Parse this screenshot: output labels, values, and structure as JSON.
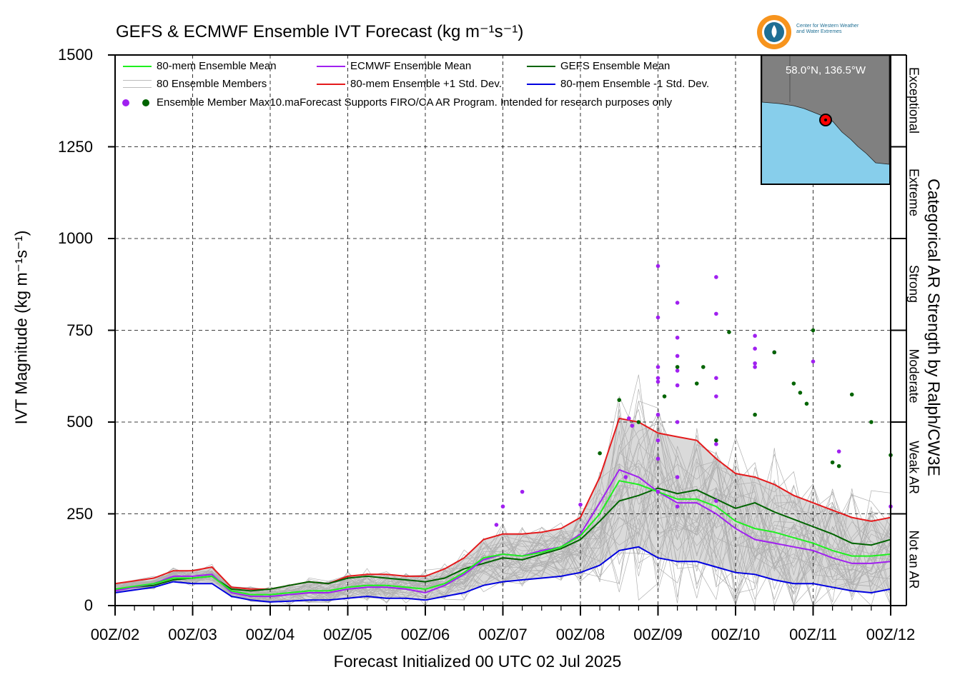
{
  "title": "GEFS & ECMWF Ensemble IVT Forecast (kg m⁻¹s⁻¹)",
  "logo": {
    "text_line1": "Center for Western Weather",
    "text_line2": "and Water Extremes"
  },
  "inset_map": {
    "location": "58.0°N, 136.5°W",
    "land_color": "#808080",
    "ocean_color": "#87ceeb",
    "marker_color": "#ff0000"
  },
  "legend": {
    "items": [
      {
        "label": "80-mem Ensemble Mean",
        "color": "#1ef01e"
      },
      {
        "label": "ECMWF Ensemble Mean",
        "color": "#a020f0"
      },
      {
        "label": "GEFS Ensemble Mean",
        "color": "#006400"
      },
      {
        "label": "80 Ensemble Members",
        "color": "#b0b0b0"
      },
      {
        "label": "80-mem Ensemble +1 Std. Dev.",
        "color": "#e41a1c"
      },
      {
        "label": "80-mem Ensemble -1 Std. Dev.",
        "color": "#0000e0"
      }
    ],
    "dots_label": "Ensemble Member Max10.maForecast Supports FIRO/CA AR Program. Intended for research purposes only"
  },
  "categories": [
    "Exceptional",
    "Extreme",
    "Strong",
    "Moderate",
    "Weak AR",
    "Not an AR"
  ],
  "chart_data": {
    "type": "line",
    "title": "GEFS & ECMWF Ensemble IVT Forecast (kg m⁻¹s⁻¹)",
    "xlabel": "Forecast Initialized 00 UTC 02 Jul 2025",
    "ylabel": "IVT Magnitude (kg m⁻¹s⁻¹)",
    "right_label": "Categorical AR Strength by Ralph/CW3E",
    "ylim": [
      0,
      1500
    ],
    "yticks": [
      0,
      250,
      500,
      750,
      1000,
      1250,
      1500
    ],
    "xlim": [
      0,
      240
    ],
    "xtick_labels": [
      "00Z/02",
      "00Z/03",
      "00Z/04",
      "00Z/05",
      "00Z/06",
      "00Z/07",
      "00Z/08",
      "00Z/09",
      "00Z/10",
      "00Z/11",
      "00Z/12"
    ],
    "x_unit": "forecast hour",
    "grid": true,
    "category_thresholds": [
      250,
      500,
      750,
      1000,
      1250
    ],
    "series": [
      {
        "name": "80-mem Ensemble Mean",
        "color": "#1ef01e",
        "x": [
          0,
          12,
          18,
          24,
          30,
          36,
          42,
          48,
          54,
          60,
          66,
          72,
          78,
          84,
          90,
          96,
          102,
          108,
          114,
          120,
          126,
          132,
          138,
          144,
          150,
          156,
          162,
          168,
          174,
          180,
          186,
          192,
          198,
          204,
          210,
          216,
          222,
          228,
          234,
          240
        ],
        "y": [
          45,
          60,
          75,
          75,
          80,
          40,
          30,
          30,
          35,
          40,
          40,
          50,
          55,
          55,
          50,
          45,
          60,
          90,
          130,
          140,
          135,
          145,
          160,
          190,
          250,
          340,
          330,
          310,
          290,
          290,
          270,
          230,
          210,
          200,
          185,
          170,
          150,
          135,
          135,
          140
        ]
      },
      {
        "name": "ECMWF Ensemble Mean",
        "color": "#a020f0",
        "x": [
          0,
          12,
          18,
          24,
          30,
          36,
          42,
          48,
          54,
          60,
          66,
          72,
          78,
          84,
          90,
          96,
          102,
          108,
          114,
          120,
          126,
          132,
          138,
          144,
          150,
          156,
          162,
          168,
          174,
          180,
          186,
          192,
          198,
          204,
          210,
          216,
          222,
          228,
          234,
          240
        ],
        "y": [
          40,
          60,
          80,
          80,
          85,
          35,
          25,
          25,
          30,
          35,
          35,
          45,
          50,
          50,
          45,
          35,
          55,
          85,
          125,
          140,
          135,
          150,
          160,
          195,
          280,
          370,
          350,
          310,
          280,
          280,
          250,
          210,
          180,
          170,
          160,
          150,
          130,
          115,
          115,
          120
        ]
      },
      {
        "name": "GEFS Ensemble Mean",
        "color": "#006400",
        "x": [
          0,
          12,
          18,
          24,
          30,
          36,
          42,
          48,
          54,
          60,
          66,
          72,
          78,
          84,
          90,
          96,
          102,
          108,
          114,
          120,
          126,
          132,
          138,
          144,
          150,
          156,
          162,
          168,
          174,
          180,
          186,
          192,
          198,
          204,
          210,
          216,
          222,
          228,
          234,
          240
        ],
        "y": [
          45,
          55,
          70,
          75,
          80,
          45,
          40,
          45,
          55,
          65,
          60,
          75,
          80,
          75,
          70,
          65,
          75,
          100,
          115,
          130,
          125,
          140,
          155,
          180,
          230,
          285,
          300,
          320,
          305,
          315,
          290,
          265,
          280,
          255,
          235,
          215,
          195,
          170,
          165,
          180
        ]
      },
      {
        "name": "80-mem Ensemble +1 Std. Dev.",
        "color": "#e41a1c",
        "x": [
          0,
          12,
          18,
          24,
          30,
          36,
          42,
          48,
          54,
          60,
          66,
          72,
          78,
          84,
          90,
          96,
          102,
          108,
          114,
          120,
          126,
          132,
          138,
          144,
          150,
          156,
          162,
          168,
          174,
          180,
          186,
          192,
          198,
          204,
          210,
          216,
          222,
          228,
          234,
          240
        ],
        "y": [
          60,
          75,
          95,
          95,
          105,
          50,
          45,
          45,
          55,
          65,
          60,
          80,
          85,
          85,
          80,
          80,
          100,
          130,
          180,
          195,
          195,
          200,
          210,
          240,
          350,
          510,
          500,
          470,
          460,
          450,
          400,
          360,
          350,
          330,
          300,
          280,
          260,
          240,
          230,
          240
        ]
      },
      {
        "name": "80-mem Ensemble -1 Std. Dev.",
        "color": "#0000e0",
        "x": [
          0,
          12,
          18,
          24,
          30,
          36,
          42,
          48,
          54,
          60,
          66,
          72,
          78,
          84,
          90,
          96,
          102,
          108,
          114,
          120,
          126,
          132,
          138,
          144,
          150,
          156,
          162,
          168,
          174,
          180,
          186,
          192,
          198,
          204,
          210,
          216,
          222,
          228,
          234,
          240
        ],
        "y": [
          35,
          50,
          65,
          60,
          60,
          25,
          15,
          10,
          12,
          15,
          15,
          20,
          25,
          20,
          20,
          15,
          25,
          35,
          55,
          65,
          70,
          75,
          80,
          90,
          110,
          150,
          160,
          130,
          120,
          120,
          105,
          90,
          85,
          70,
          60,
          60,
          50,
          40,
          35,
          45
        ]
      }
    ],
    "member_max_points": {
      "ECMWF": {
        "color": "#a020f0",
        "x": [
          118,
          120,
          126,
          144,
          158,
          159,
          160,
          168,
          168,
          168,
          168,
          168,
          168,
          168,
          168,
          168,
          174,
          174,
          174,
          174,
          174,
          174,
          174,
          174,
          186,
          186,
          186,
          186,
          186,
          186,
          198,
          198,
          198,
          198,
          204,
          216,
          224,
          240
        ],
        "y": [
          220,
          270,
          310,
          275,
          350,
          510,
          490,
          450,
          785,
          620,
          925,
          650,
          610,
          520,
          400,
          310,
          825,
          730,
          680,
          640,
          600,
          500,
          350,
          270,
          895,
          795,
          620,
          570,
          440,
          285,
          735,
          700,
          660,
          650,
          690,
          665,
          420,
          270
        ]
      },
      "GEFS": {
        "color": "#006400",
        "x": [
          150,
          156,
          162,
          170,
          174,
          180,
          182,
          186,
          190,
          198,
          204,
          210,
          212,
          214,
          216,
          222,
          224,
          228,
          234,
          240
        ],
        "y": [
          415,
          560,
          500,
          570,
          650,
          605,
          650,
          450,
          745,
          520,
          690,
          605,
          580,
          550,
          750,
          390,
          380,
          575,
          500,
          410
        ]
      }
    }
  }
}
